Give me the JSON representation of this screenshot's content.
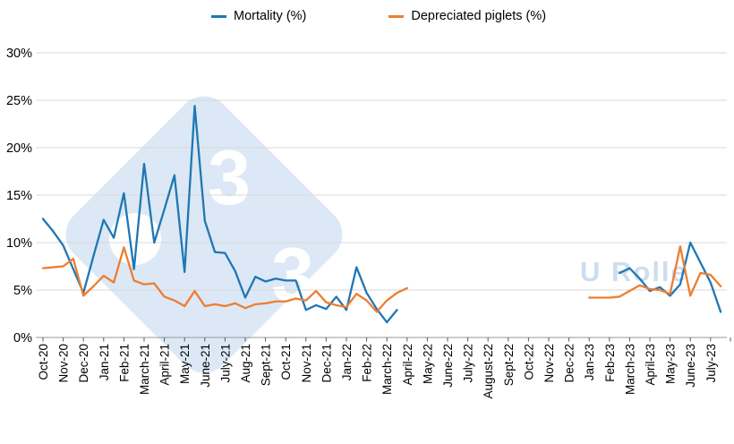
{
  "watermark": {
    "digit": "3",
    "brand_text": "U Rolle",
    "diamond_color": "#dce8f5",
    "text_color": "#cdddef"
  },
  "axes": {
    "y_tick_labels": [
      "0%",
      "5%",
      "10%",
      "15%",
      "20%",
      "25%",
      "30%"
    ],
    "axis_color": "#9a9a9a",
    "grid_color": "#d9d9d9",
    "tick_color": "#595959",
    "label_color": "#000000"
  },
  "chart_data": {
    "type": "line",
    "title": "",
    "xlabel": "",
    "ylabel": "",
    "ylim": [
      0,
      30
    ],
    "grid": "horizontal",
    "legend_position": "top",
    "x_index_note": "x = month index, 0 = Oct-20, 0.5 = mid-month point; series drawn in two segments with a gap (no data May-22 to Dec-22 / Feb-23)",
    "categories": [
      "Oct-20",
      "Nov-20",
      "Dec-20",
      "Jan-21",
      "Feb-21",
      "March-21",
      "April-21",
      "May-21",
      "June-21",
      "July-21",
      "Aug-21",
      "Sept-21",
      "Oct-21",
      "Nov-21",
      "Dec-21",
      "Jan-22",
      "Feb-22",
      "March-22",
      "April-22",
      "May-22",
      "June-22",
      "July-22",
      "August-22",
      "Sept-22",
      "Oct-22",
      "Nov-22",
      "Dec-22",
      "Jan-23",
      "Feb-23",
      "March-23",
      "April-23",
      "May-23",
      "June-23",
      "July-23"
    ],
    "series": [
      {
        "name": "Mortality (%)",
        "id": "mortality",
        "color": "#1f77b4",
        "segments": [
          [
            [
              0,
              12.5
            ],
            [
              0.5,
              11.2
            ],
            [
              1,
              9.7
            ],
            [
              1.5,
              7.2
            ],
            [
              2,
              4.7
            ],
            [
              2.5,
              8.6
            ],
            [
              3,
              12.4
            ],
            [
              3.5,
              10.5
            ],
            [
              4,
              15.2
            ],
            [
              4.5,
              7.2
            ],
            [
              5,
              18.3
            ],
            [
              5.5,
              10.0
            ],
            [
              6,
              13.5
            ],
            [
              6.5,
              17.1
            ],
            [
              7,
              6.9
            ],
            [
              7.5,
              24.4
            ],
            [
              8,
              12.3
            ],
            [
              8.5,
              9.0
            ],
            [
              9,
              8.9
            ],
            [
              9.5,
              7.0
            ],
            [
              10,
              4.2
            ],
            [
              10.5,
              6.4
            ],
            [
              11,
              5.9
            ],
            [
              11.5,
              6.2
            ],
            [
              12,
              6.0
            ],
            [
              12.5,
              6.0
            ],
            [
              13,
              2.9
            ],
            [
              13.5,
              3.4
            ],
            [
              14,
              3.0
            ],
            [
              14.5,
              4.3
            ],
            [
              15,
              2.9
            ],
            [
              15.5,
              7.4
            ],
            [
              16,
              4.7
            ],
            [
              16.5,
              3.0
            ],
            [
              17,
              1.6
            ],
            [
              17.5,
              2.9
            ]
          ],
          [
            [
              28.5,
              6.8
            ],
            [
              29,
              7.3
            ],
            [
              29.5,
              6.2
            ],
            [
              30,
              4.9
            ],
            [
              30.5,
              5.3
            ],
            [
              31,
              4.4
            ],
            [
              31.5,
              5.6
            ],
            [
              32,
              10.0
            ],
            [
              32.5,
              7.9
            ],
            [
              33,
              5.8
            ],
            [
              33.5,
              2.7
            ]
          ]
        ]
      },
      {
        "name": "Depreciated piglets (%)",
        "id": "depreciated-piglets",
        "color": "#ed7d31",
        "segments": [
          [
            [
              0,
              7.3
            ],
            [
              0.5,
              7.4
            ],
            [
              1,
              7.5
            ],
            [
              1.5,
              8.3
            ],
            [
              2,
              4.4
            ],
            [
              2.5,
              5.4
            ],
            [
              3,
              6.5
            ],
            [
              3.5,
              5.8
            ],
            [
              4,
              9.5
            ],
            [
              4.5,
              6.0
            ],
            [
              5,
              5.6
            ],
            [
              5.5,
              5.7
            ],
            [
              6,
              4.3
            ],
            [
              6.5,
              3.9
            ],
            [
              7,
              3.3
            ],
            [
              7.5,
              4.9
            ],
            [
              8,
              3.3
            ],
            [
              8.5,
              3.5
            ],
            [
              9,
              3.3
            ],
            [
              9.5,
              3.6
            ],
            [
              10,
              3.1
            ],
            [
              10.5,
              3.5
            ],
            [
              11,
              3.6
            ],
            [
              11.5,
              3.8
            ],
            [
              12,
              3.8
            ],
            [
              12.5,
              4.1
            ],
            [
              13,
              3.9
            ],
            [
              13.5,
              4.9
            ],
            [
              14,
              3.7
            ],
            [
              14.5,
              3.4
            ],
            [
              15,
              3.2
            ],
            [
              15.5,
              4.6
            ],
            [
              16,
              3.9
            ],
            [
              16.5,
              2.7
            ],
            [
              17,
              3.9
            ],
            [
              17.5,
              4.7
            ],
            [
              18,
              5.2
            ]
          ],
          [
            [
              27,
              4.2
            ],
            [
              27.5,
              4.2
            ],
            [
              28,
              4.2
            ],
            [
              28.5,
              4.3
            ],
            [
              29,
              4.9
            ],
            [
              29.5,
              5.5
            ],
            [
              30,
              5.1
            ],
            [
              30.5,
              5.0
            ],
            [
              31,
              4.6
            ],
            [
              31.5,
              9.6
            ],
            [
              32,
              4.4
            ],
            [
              32.5,
              6.8
            ],
            [
              33,
              6.6
            ],
            [
              33.5,
              5.4
            ]
          ]
        ]
      }
    ]
  }
}
